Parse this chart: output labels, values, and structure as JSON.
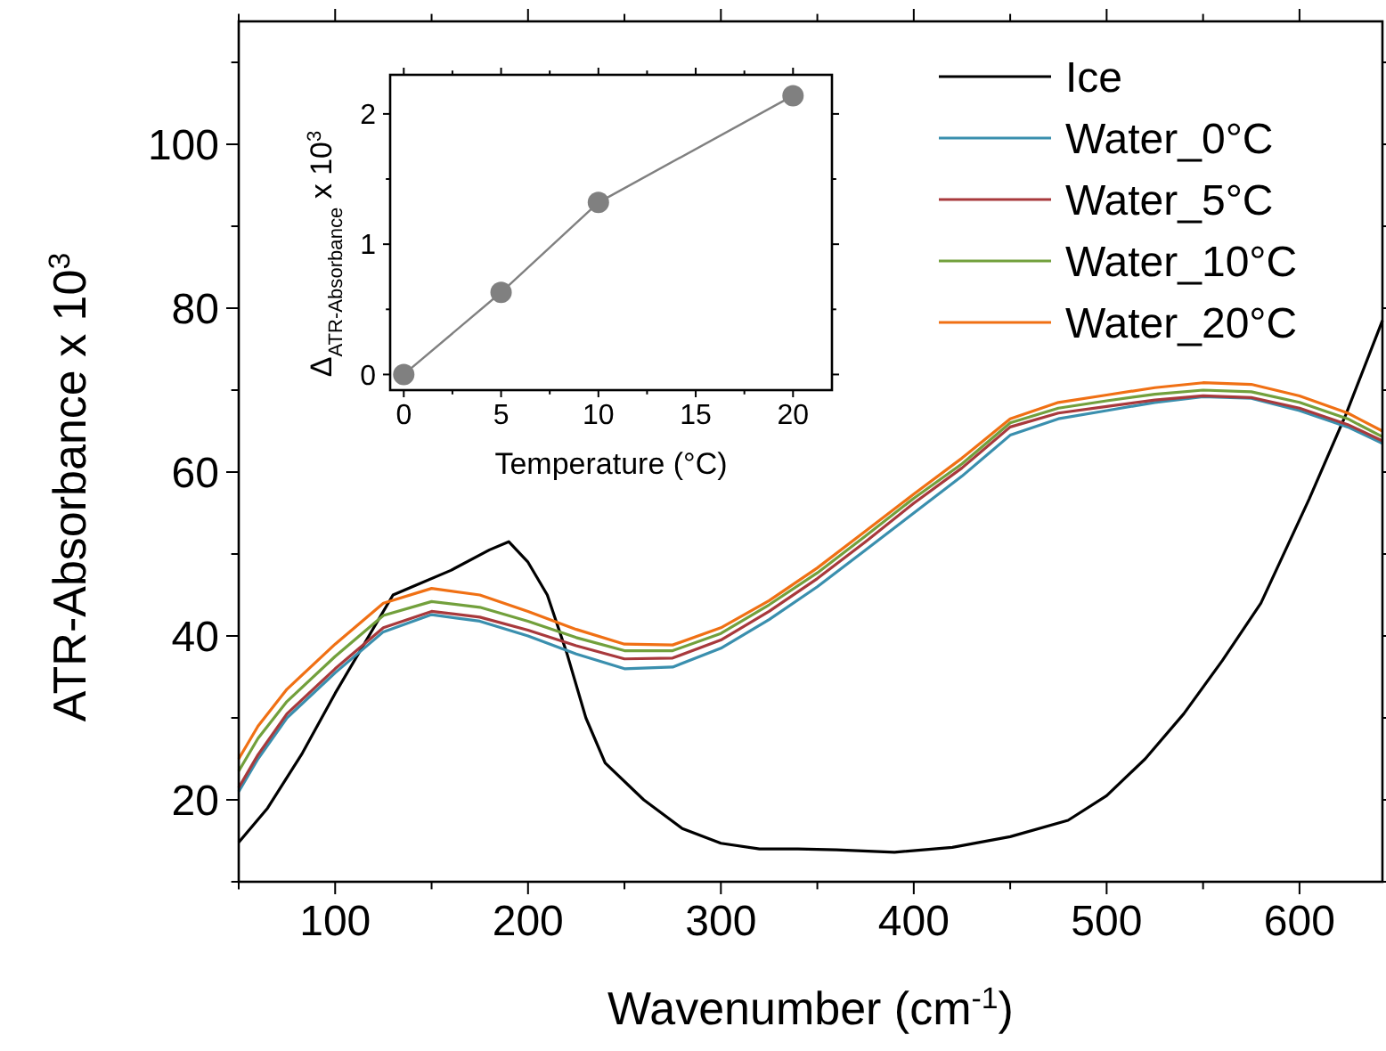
{
  "chart_data": [
    {
      "type": "line",
      "xlabel": "Wavenumber (cm$^{-1}$)",
      "ylabel": "ATR-Absorbance x 10$^{3}$",
      "xlim": [
        50,
        643
      ],
      "ylim": [
        10,
        115
      ],
      "xticks": [
        {
          "value": 50,
          "label": null
        },
        100,
        {
          "value": 150,
          "label": null
        },
        200,
        {
          "value": 250,
          "label": null
        },
        300,
        {
          "value": 350,
          "label": null
        },
        400,
        {
          "value": 450,
          "label": null
        },
        500,
        {
          "value": 550,
          "label": null
        },
        600
      ],
      "yticks": [
        {
          "value": 10,
          "label": null
        },
        20,
        {
          "value": 30,
          "label": null
        },
        40,
        {
          "value": 50,
          "label": null
        },
        60,
        {
          "value": 70,
          "label": null
        },
        80,
        {
          "value": 90,
          "label": null
        },
        100,
        {
          "value": 110,
          "label": null
        }
      ],
      "legend": "top right",
      "grid": false,
      "marker": "none",
      "line_style": "solid",
      "x": [
        50,
        60,
        75,
        100,
        125,
        150,
        175,
        200,
        225,
        250,
        275,
        300,
        325,
        350,
        375,
        400,
        425,
        450,
        475,
        500,
        525,
        550,
        575,
        600,
        625,
        643
      ],
      "series": [
        {
          "name": "Ice",
          "color": "#000000",
          "x": [
            50,
            65,
            83,
            100,
            120,
            130,
            140,
            160,
            180,
            190,
            200,
            210,
            220,
            230,
            240,
            260,
            280,
            300,
            320,
            340,
            360,
            390,
            420,
            450,
            480,
            500,
            520,
            540,
            560,
            580,
            605,
            624,
            643
          ],
          "values": [
            14.8,
            19,
            25.7,
            33,
            41,
            45,
            46,
            48,
            50.5,
            51.5,
            49,
            45,
            38,
            30,
            24.5,
            20,
            16.5,
            14.7,
            14,
            14,
            13.9,
            13.6,
            14.2,
            15.5,
            17.5,
            20.5,
            25,
            30.5,
            37,
            44,
            56.7,
            67,
            78.5
          ]
        },
        {
          "name": "Water_0°C",
          "color": "#3a8fae",
          "values": [
            21,
            25,
            30,
            35.5,
            40.5,
            42.6,
            41.8,
            40,
            37.8,
            36,
            36.2,
            38.5,
            42,
            46,
            50.5,
            55,
            59.5,
            64.5,
            66.5,
            67.5,
            68.5,
            69.2,
            69,
            67.5,
            65.5,
            63.5
          ]
        },
        {
          "name": "Water_5°C",
          "color": "#a8393c",
          "values": [
            21.5,
            25.5,
            30.5,
            36,
            41,
            43,
            42.3,
            40.7,
            38.8,
            37.2,
            37.3,
            39.5,
            43,
            47,
            51.5,
            56.2,
            60.5,
            65.5,
            67.2,
            68,
            68.8,
            69.3,
            69.1,
            67.8,
            65.8,
            63.8
          ]
        },
        {
          "name": "Water_10°C",
          "color": "#72a03c",
          "values": [
            23.5,
            27.5,
            32,
            37.5,
            42.5,
            44.2,
            43.5,
            41.8,
            39.8,
            38.2,
            38.2,
            40.3,
            43.8,
            47.7,
            52.2,
            56.8,
            61,
            66,
            67.8,
            68.7,
            69.5,
            70,
            69.8,
            68.5,
            66.5,
            64.3
          ]
        },
        {
          "name": "Water_20°C",
          "color": "#f07014",
          "values": [
            25,
            29,
            33.5,
            39,
            44,
            45.8,
            45,
            43,
            40.8,
            39,
            38.9,
            41,
            44.3,
            48.3,
            52.8,
            57.3,
            61.7,
            66.5,
            68.5,
            69.4,
            70.3,
            70.9,
            70.7,
            69.3,
            67.2,
            65
          ]
        }
      ]
    },
    {
      "type": "line",
      "xlabel": "Temperature (°C)",
      "ylabel": "Δ$_{ATR-Absorbance}$ x 10$^{3}$",
      "xlim": [
        -0.7,
        22
      ],
      "ylim": [
        -0.12,
        2.3
      ],
      "xticks": [
        0,
        {
          "value": 2.5,
          "label": null
        },
        5,
        {
          "value": 7.5,
          "label": null
        },
        10,
        {
          "value": 12.5,
          "label": null
        },
        15,
        {
          "value": 17.5,
          "label": null
        },
        20
      ],
      "yticks": [
        0,
        {
          "value": 0.5,
          "label": null
        },
        1,
        {
          "value": 1.5,
          "label": null
        },
        2
      ],
      "marker": "circle",
      "line_style": "solid",
      "grid": false,
      "legend": false,
      "x": [
        0,
        5,
        10,
        20
      ],
      "series": [
        {
          "color": "#808080",
          "values": [
            0,
            0.63,
            1.32,
            2.14
          ]
        }
      ]
    }
  ]
}
